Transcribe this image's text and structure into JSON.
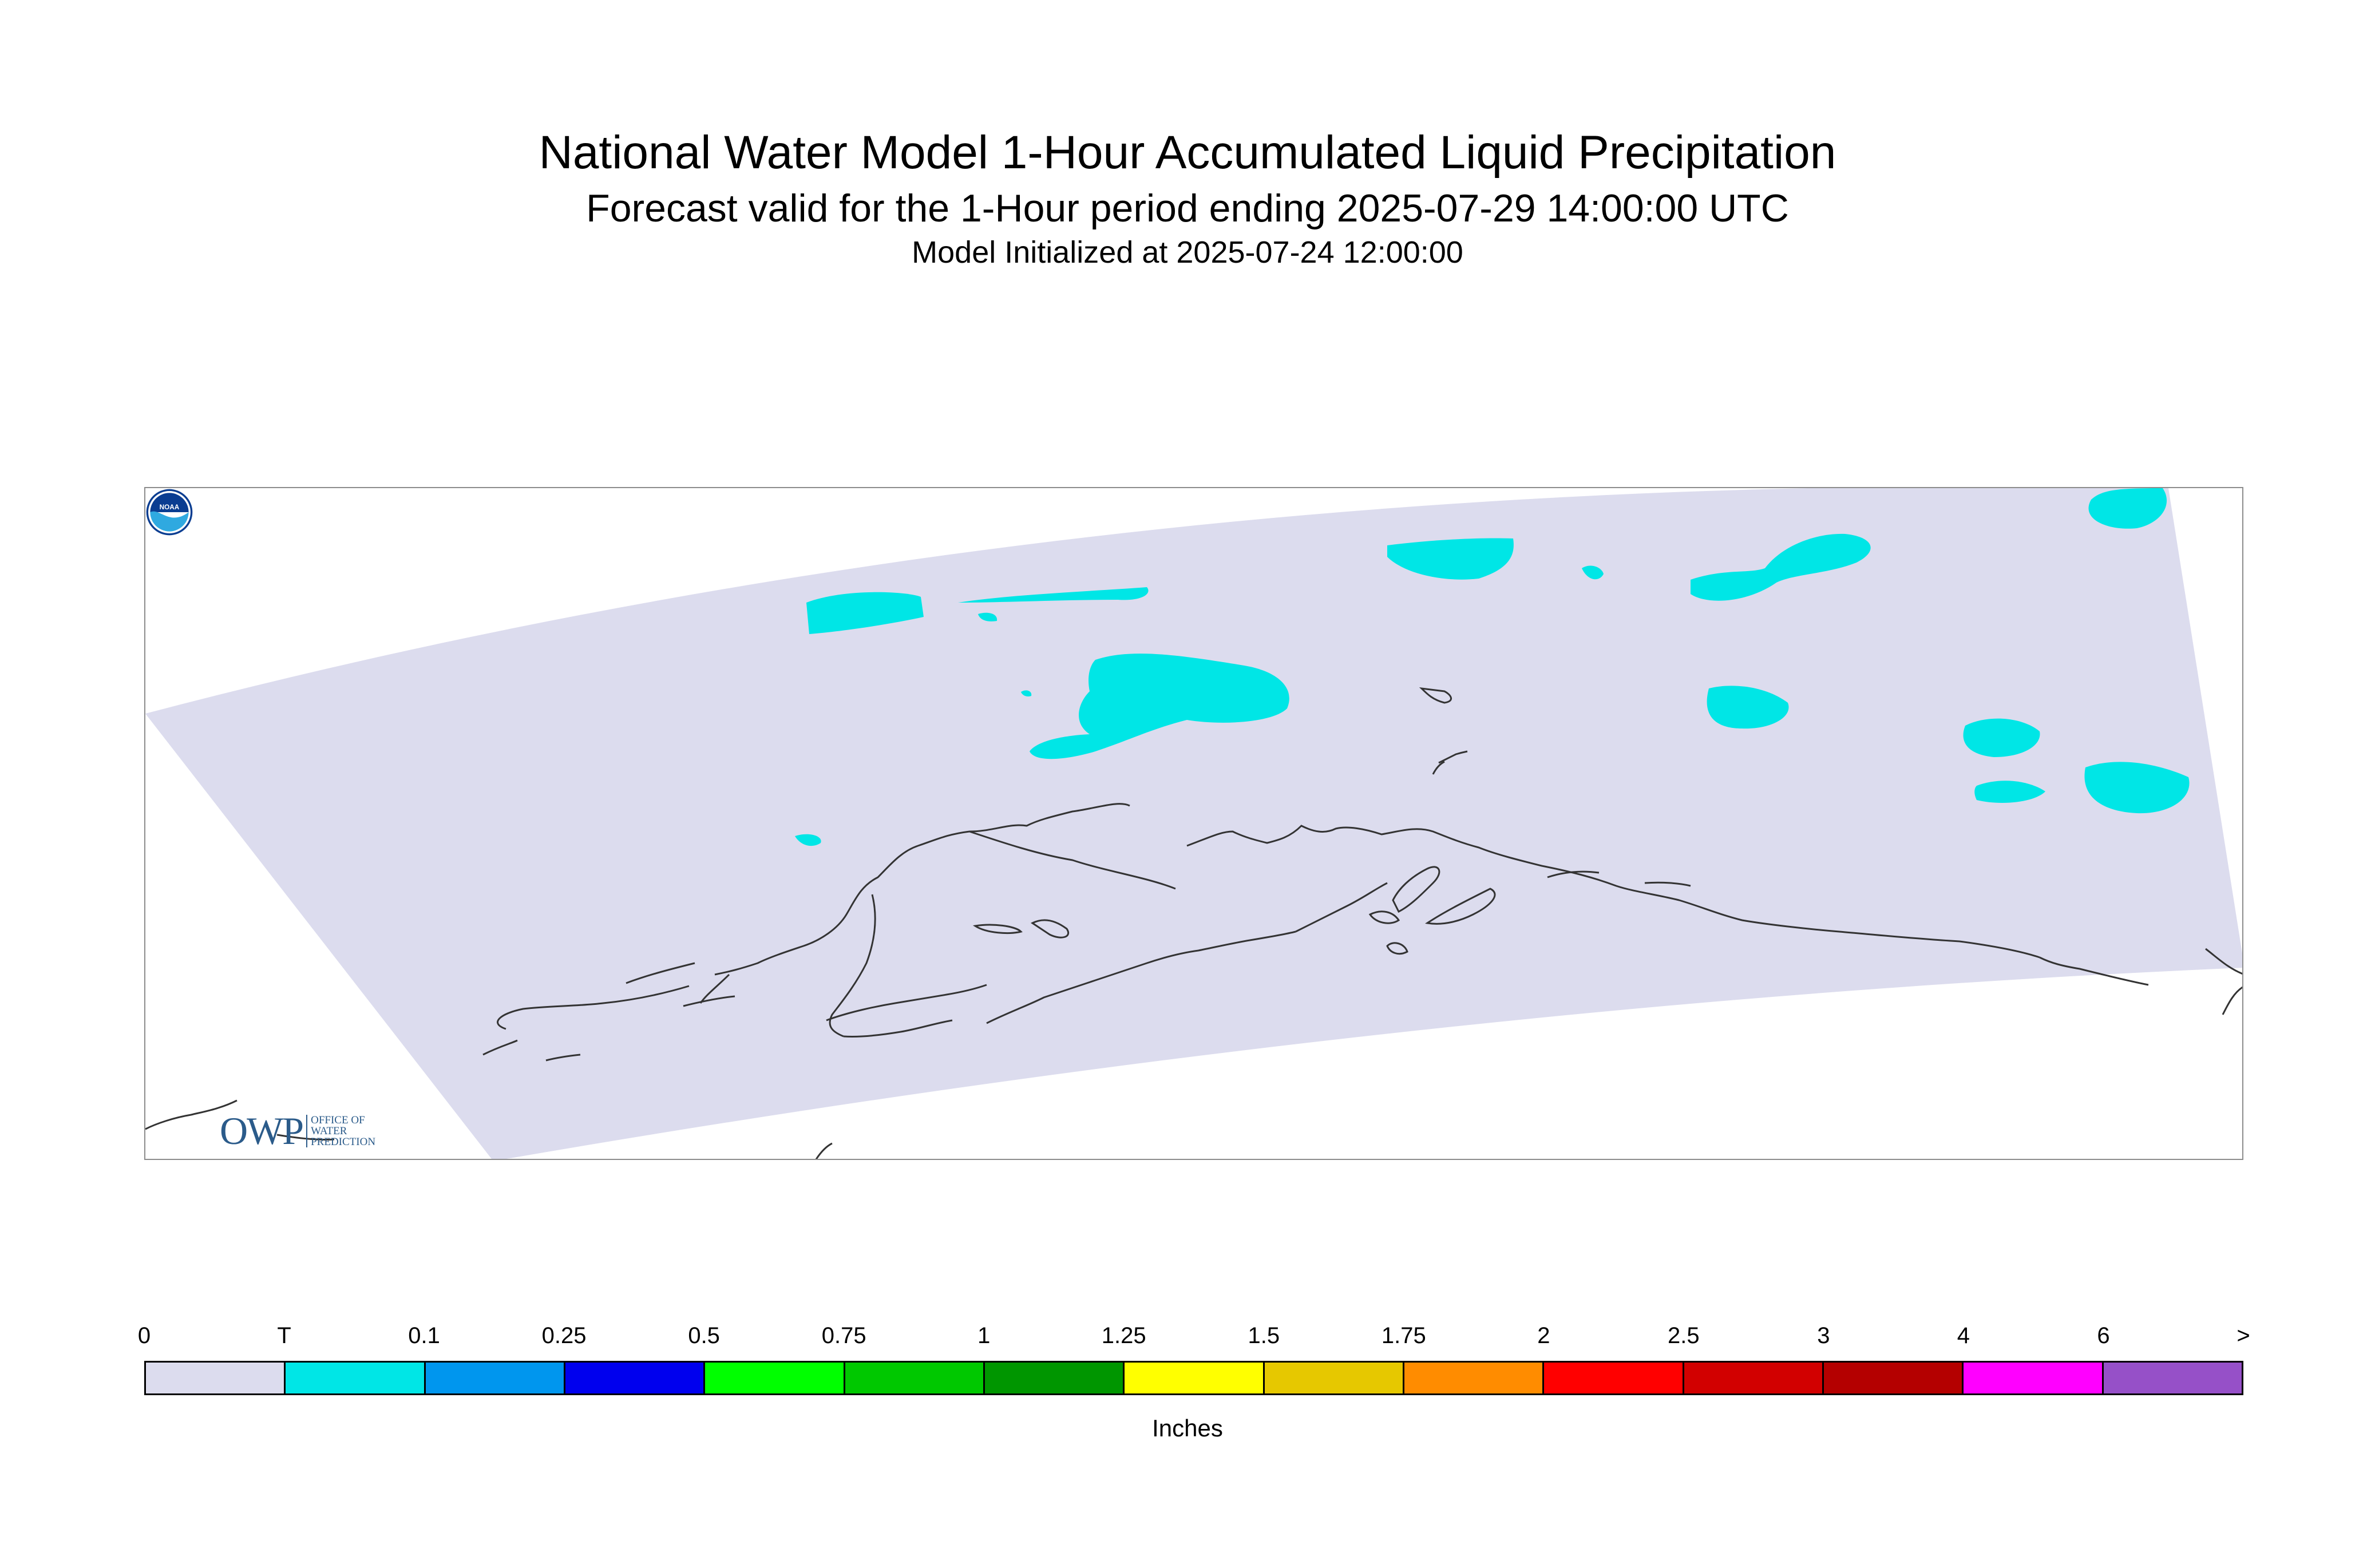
{
  "titles": {
    "main": "National Water Model 1-Hour Accumulated Liquid Precipitation",
    "forecast": "Forecast valid for the 1-Hour period ending 2025-07-29 14:00:00 UTC",
    "init": "Model Initialized at 2025-07-24 12:00:00"
  },
  "map": {
    "domain_fill_color": "#dcdcee",
    "precip_color": "#00e6e6",
    "coastline_color": "#333333",
    "region": "Alaska"
  },
  "logos": {
    "owp_big": "OWP",
    "owp_lines": [
      "OFFICE OF",
      "WATER",
      "PREDICTION"
    ],
    "noaa": "NOAA"
  },
  "legend": {
    "units": "Inches",
    "tick_labels": [
      "0",
      "T",
      "0.1",
      "0.25",
      "0.5",
      "0.75",
      "1",
      "1.25",
      "1.5",
      "1.75",
      "2",
      "2.5",
      "3",
      "4",
      "6",
      ">"
    ],
    "colors": [
      "#dcdcee",
      "#00e6e6",
      "#0096ee",
      "#0000ee",
      "#00ff00",
      "#00c800",
      "#009600",
      "#ffff00",
      "#e6c800",
      "#ff8c00",
      "#ff0000",
      "#d20000",
      "#b40000",
      "#ff00ff",
      "#9650c8"
    ]
  }
}
